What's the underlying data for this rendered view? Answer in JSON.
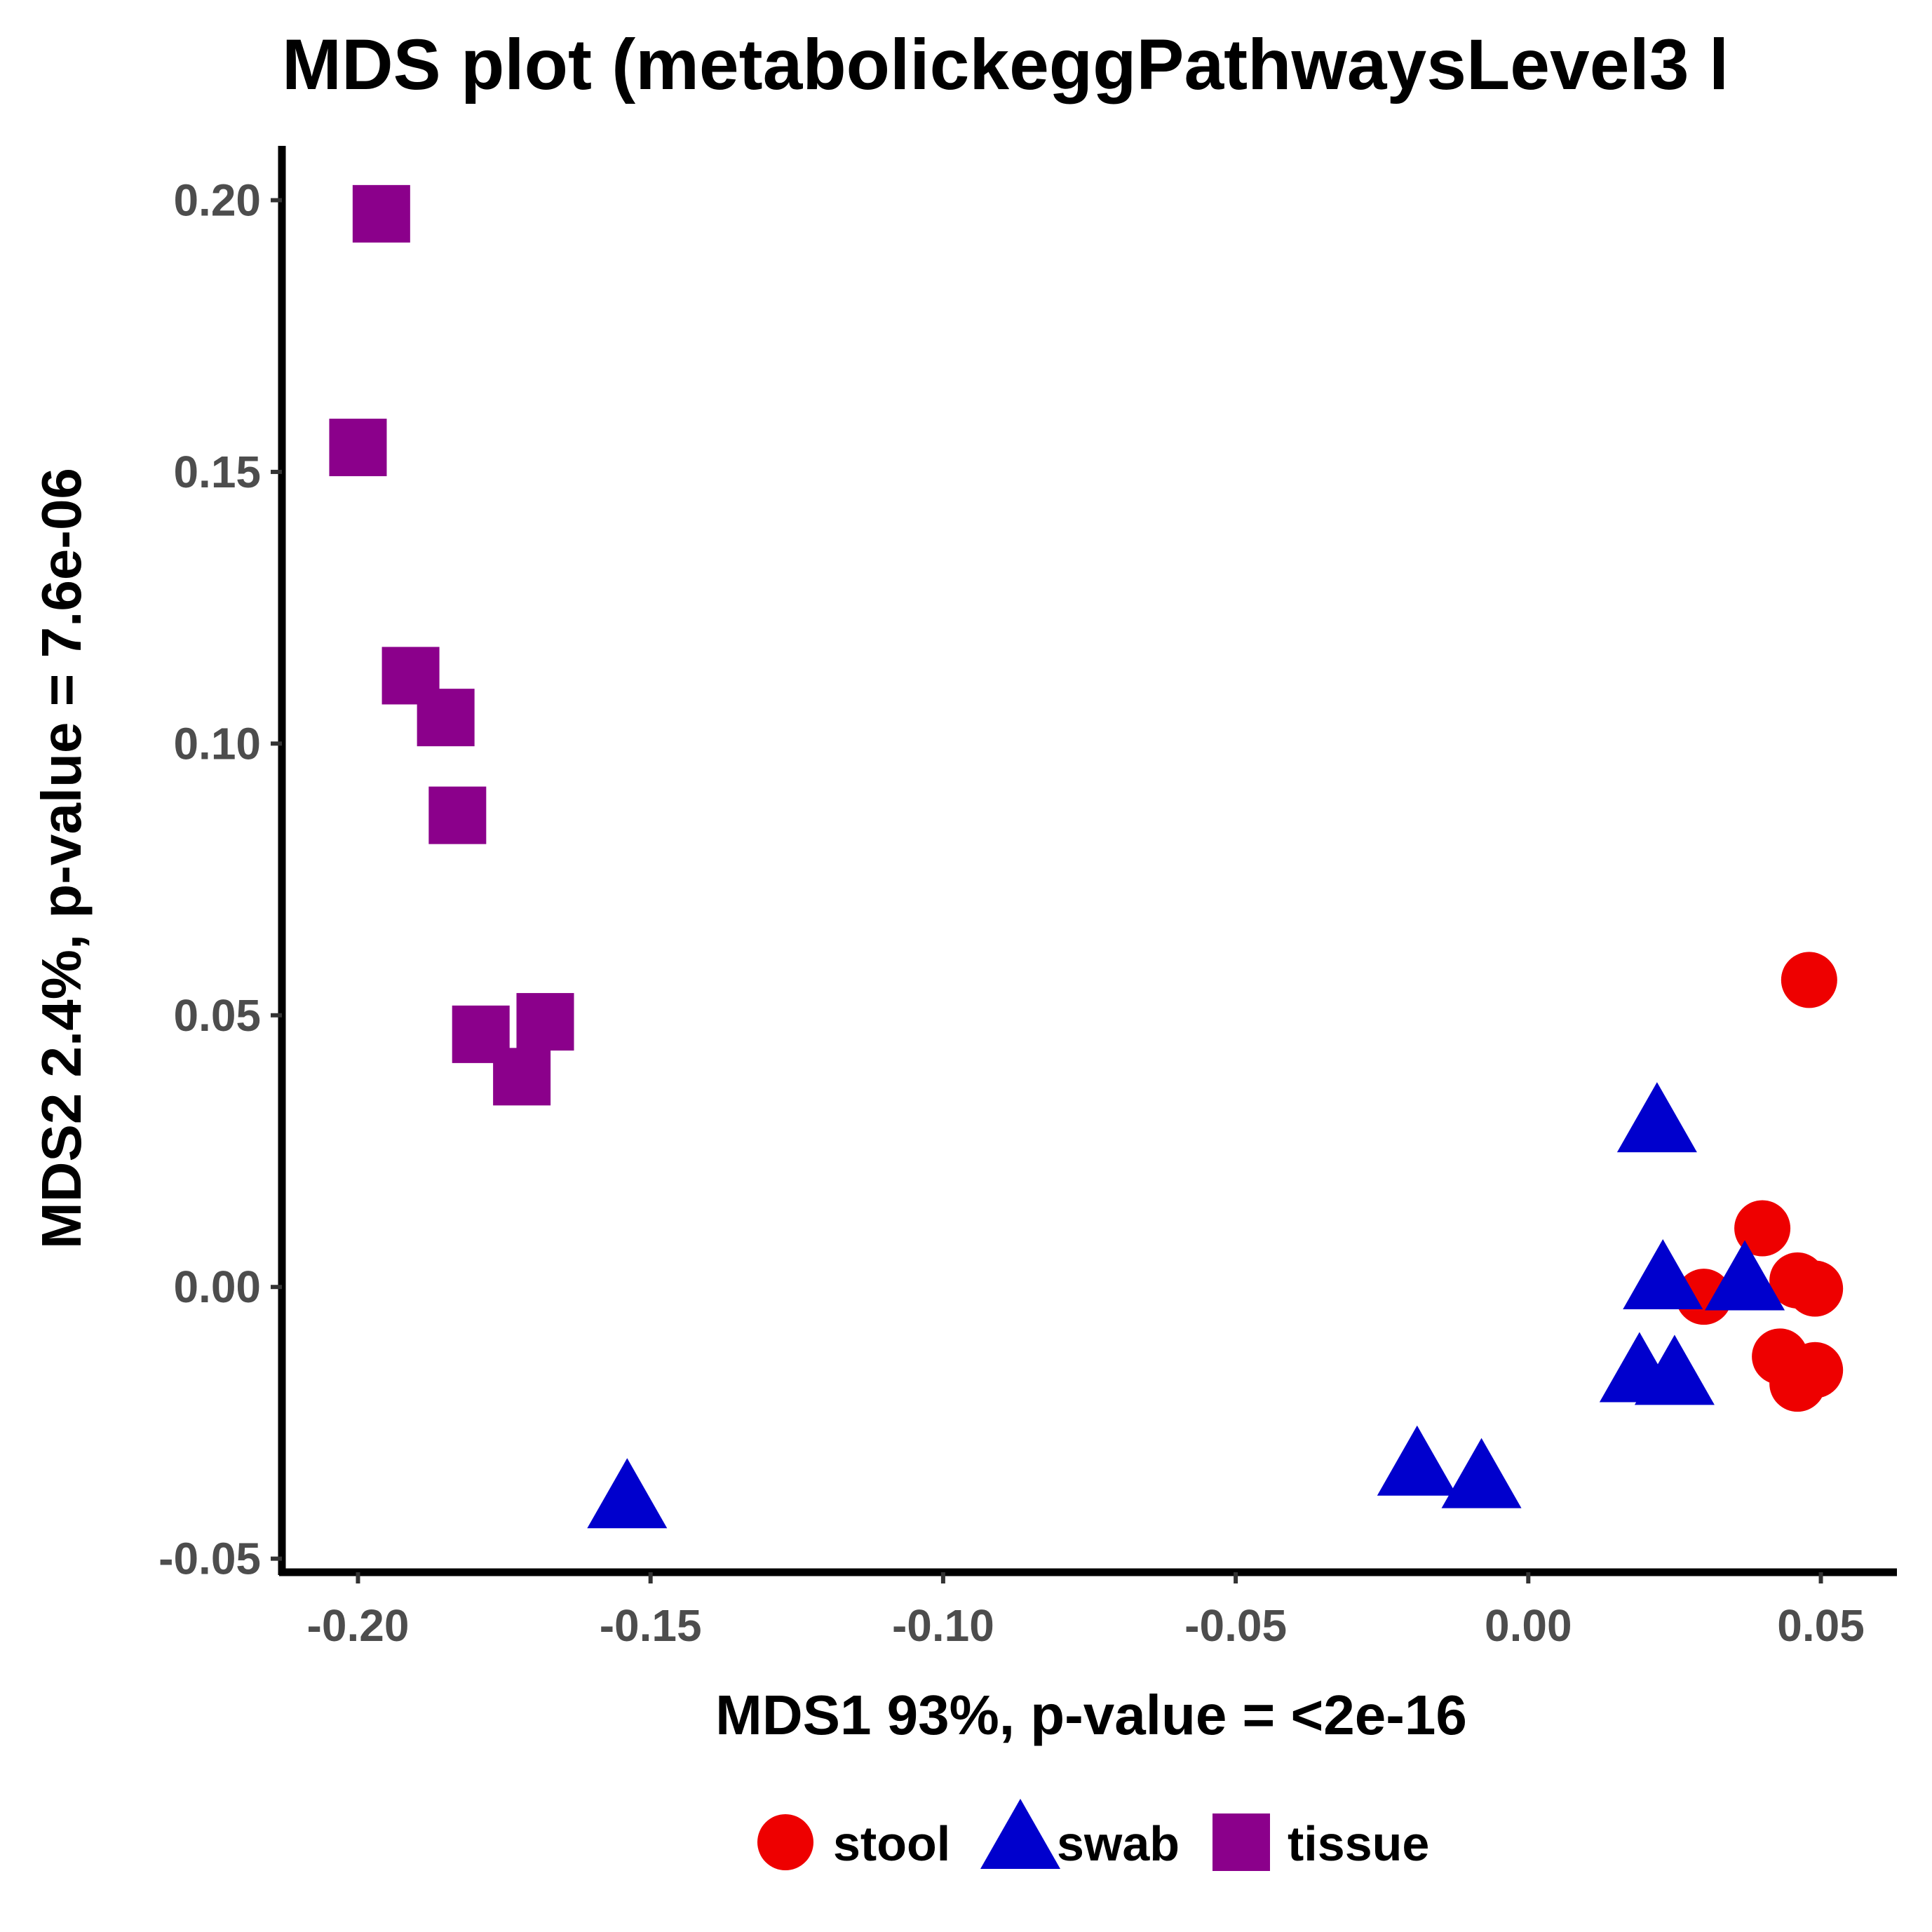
{
  "chart_data": {
    "type": "scatter",
    "title": "MDS plot (metabolickeggPathwaysLevel3 l",
    "xlabel": "MDS1 93%, p-value = <2e-16",
    "ylabel": "MDS2 2.4%, p-value = 7.6e-06",
    "xlim": [
      -0.213,
      0.063
    ],
    "ylim": [
      -0.0525,
      0.21
    ],
    "xticks": [
      -0.2,
      -0.15,
      -0.1,
      -0.05,
      0.0,
      0.05
    ],
    "xtick_labels": [
      "-0.20",
      "-0.15",
      "-0.10",
      "-0.05",
      "0.00",
      "0.05"
    ],
    "yticks": [
      -0.05,
      0.0,
      0.05,
      0.1,
      0.15,
      0.2
    ],
    "ytick_labels": [
      "-0.05",
      "0.00",
      "0.05",
      "0.10",
      "0.15",
      "0.20"
    ],
    "grid": false,
    "legend_position": "bottom",
    "series": [
      {
        "name": "stool",
        "shape": "circle",
        "color": "#EE0000",
        "points": [
          {
            "x": 0.048,
            "y": 0.0565
          },
          {
            "x": 0.04,
            "y": 0.0108
          },
          {
            "x": 0.046,
            "y": 0.0012
          },
          {
            "x": 0.049,
            "y": -0.0003
          },
          {
            "x": 0.03,
            "y": -0.0018
          },
          {
            "x": 0.043,
            "y": -0.0128
          },
          {
            "x": 0.049,
            "y": -0.0153
          },
          {
            "x": 0.046,
            "y": -0.0178
          }
        ]
      },
      {
        "name": "swab",
        "shape": "triangle",
        "color": "#0000CD",
        "points": [
          {
            "x": 0.022,
            "y": 0.0297
          },
          {
            "x": 0.023,
            "y": 0.0008
          },
          {
            "x": 0.037,
            "y": 0.0006
          },
          {
            "x": 0.019,
            "y": -0.0163
          },
          {
            "x": 0.025,
            "y": -0.0168
          },
          {
            "x": -0.019,
            "y": -0.0335
          },
          {
            "x": -0.008,
            "y": -0.0358
          },
          {
            "x": -0.154,
            "y": -0.0395
          }
        ]
      },
      {
        "name": "tissue",
        "shape": "square",
        "color": "#8B008B",
        "points": [
          {
            "x": -0.196,
            "y": 0.1975
          },
          {
            "x": -0.2,
            "y": 0.1545
          },
          {
            "x": -0.191,
            "y": 0.1125
          },
          {
            "x": -0.185,
            "y": 0.1048
          },
          {
            "x": -0.183,
            "y": 0.0868
          },
          {
            "x": -0.179,
            "y": 0.0465
          },
          {
            "x": -0.168,
            "y": 0.0488
          },
          {
            "x": -0.172,
            "y": 0.0387
          }
        ]
      }
    ]
  }
}
